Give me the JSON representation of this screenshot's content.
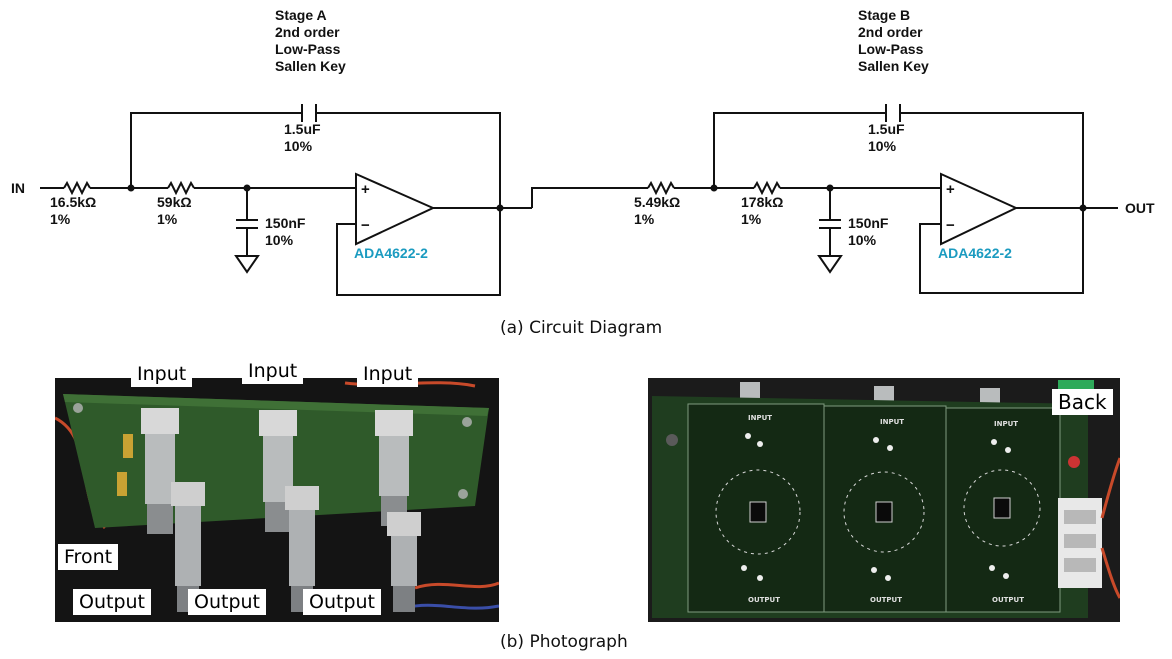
{
  "stage_a": {
    "title": "Stage A",
    "line2": "2nd order",
    "line3": "Low-Pass",
    "line4": "Sallen Key"
  },
  "stage_b": {
    "title": "Stage B",
    "line2": "2nd order",
    "line3": "Low-Pass",
    "line4": "Sallen Key"
  },
  "in_label": "IN",
  "out_label": "OUT",
  "stage_a_parts": {
    "r1_value": "16.5kΩ",
    "r1_tol": "1%",
    "r2_value": "59kΩ",
    "r2_tol": "1%",
    "c_fb_value": "1.5uF",
    "c_fb_tol": "10%",
    "c_gnd_value": "150nF",
    "c_gnd_tol": "10%",
    "opamp": "ADA4622-2"
  },
  "stage_b_parts": {
    "r1_value": "5.49kΩ",
    "r1_tol": "1%",
    "r2_value": "178kΩ",
    "r2_tol": "1%",
    "c_fb_value": "1.5uF",
    "c_fb_tol": "10%",
    "c_gnd_value": "150nF",
    "c_gnd_tol": "10%",
    "opamp": "ADA4622-2"
  },
  "opamp_plus": "+",
  "opamp_minus": "−",
  "caption_a": "(a) Circuit Diagram",
  "caption_b": "(b) Photograph",
  "front_photo": {
    "inputs": [
      "Input",
      "Input",
      "Input"
    ],
    "outputs": [
      "Output",
      "Output",
      "Output"
    ],
    "front_label": "Front"
  },
  "back_photo": {
    "back_label": "Back",
    "silk_input": [
      "INPUT",
      "INPUT",
      "INPUT"
    ],
    "silk_output": [
      "OUTPUT",
      "OUTPUT",
      "OUTPUT"
    ]
  },
  "colors": {
    "opamp_label": "#1b9bc0",
    "pcb_green": "#1f3d1f",
    "pcb_dark": "#0d1a0d"
  }
}
